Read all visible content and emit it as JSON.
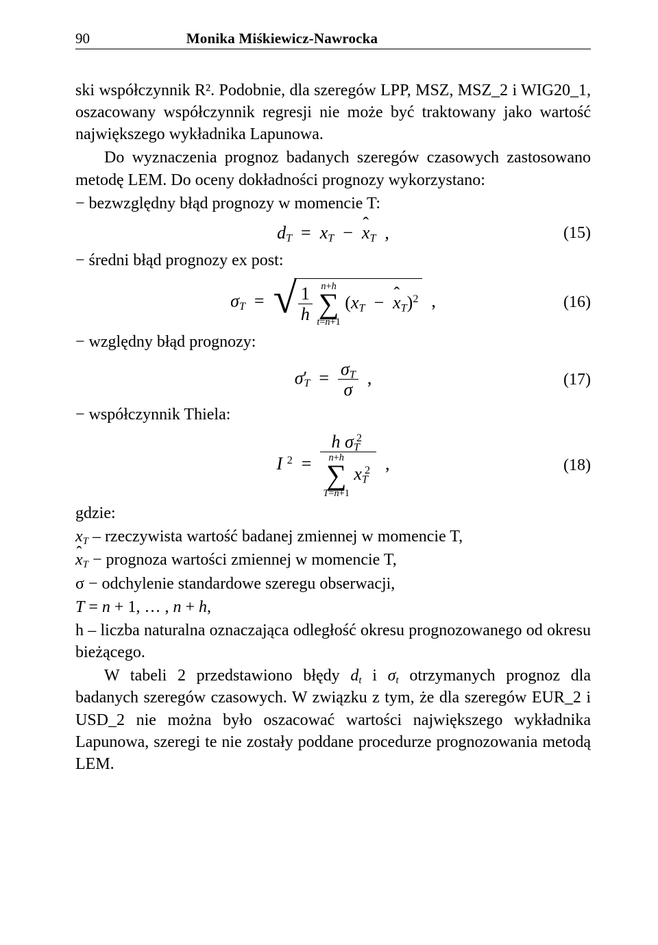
{
  "header": {
    "page_number": "90",
    "author": "Monika Miśkiewicz-Nawrocka"
  },
  "para1": "ski współczynnik R². Podobnie, dla szeregów LPP, MSZ, MSZ_2 i WIG20_1, oszacowany współczynnik regresji nie może być traktowany jako wartość największego wykładnika Lapunowa.",
  "para2": "Do wyznaczenia prognoz badanych szeregów czasowych zastosowano metodę LEM. Do oceny dokładności prognozy wykorzystano:",
  "list": {
    "item1": "− bezwzględny błąd prognozy w momencie T:",
    "item2": "− średni błąd prognozy ex post:",
    "item3": "− względny błąd prognozy:",
    "item4": "− współczynnik Thiela:"
  },
  "eq_nums": {
    "e15": "(15)",
    "e16": "(16)",
    "e17": "(17)",
    "e18": "(18)"
  },
  "where_label": "gdzie:",
  "defs": {
    "d1_pre": "x",
    "d1_sub": "T",
    "d1_post": " – rzeczywista wartość badanej zmiennej w momencie T,",
    "d2_pre_hat": "x̂",
    "d2_sub": "T",
    "d2_post": " − prognoza wartości zmiennej w momencie T,",
    "d3": "σ − odchylenie standardowe szeregu obserwacji,",
    "d4": "T = n + 1, … , n + h,",
    "d5": "h – liczba naturalna oznaczająca odległość okresu prognozowanego od okresu bieżącego."
  },
  "para3": "W tabeli 2 przedstawiono błędy dₜ i σₜ otrzymanych prognoz dla badanych szeregów czasowych. W związku z tym, że dla szeregów EUR_2 i USD_2 nie można było oszacować wartości największego wykładnika Lapunowa, szeregi te nie zostały poddane procedurze prognozowania metodą LEM."
}
